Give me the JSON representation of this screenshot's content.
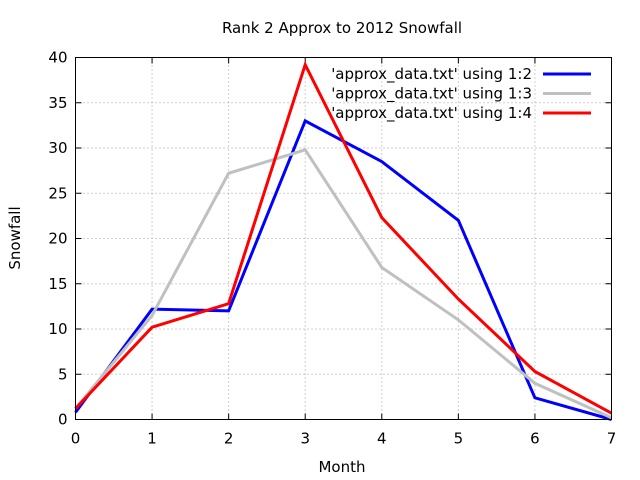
{
  "chart_data": {
    "type": "line",
    "title": "Rank 2 Approx to 2012 Snowfall",
    "xlabel": "Month",
    "ylabel": "Snowfall",
    "xlim": [
      0,
      7
    ],
    "ylim": [
      0,
      40
    ],
    "x_ticks": [
      "0",
      "1",
      "2",
      "3",
      "4",
      "5",
      "6",
      "7"
    ],
    "y_ticks": [
      "0",
      "5",
      "10",
      "15",
      "20",
      "25",
      "30",
      "35",
      "40"
    ],
    "grid": true,
    "legend_position": "top-right",
    "x": [
      0,
      1,
      2,
      3,
      4,
      5,
      6,
      7
    ],
    "series": [
      {
        "name": "'approx_data.txt' using 1:2",
        "color": "#0000ff",
        "values": [
          0.8,
          12.2,
          12.0,
          33.0,
          28.5,
          22.0,
          2.4,
          0.0
        ]
      },
      {
        "name": "'approx_data.txt' using 1:3",
        "color": "#c0c0c0",
        "values": [
          1.2,
          11.5,
          27.2,
          29.8,
          16.8,
          11.0,
          4.0,
          0.2
        ]
      },
      {
        "name": "'approx_data.txt' using 1:4",
        "color": "#ff0000",
        "values": [
          1.2,
          10.2,
          12.8,
          39.2,
          22.3,
          13.3,
          5.3,
          0.7
        ]
      }
    ]
  }
}
